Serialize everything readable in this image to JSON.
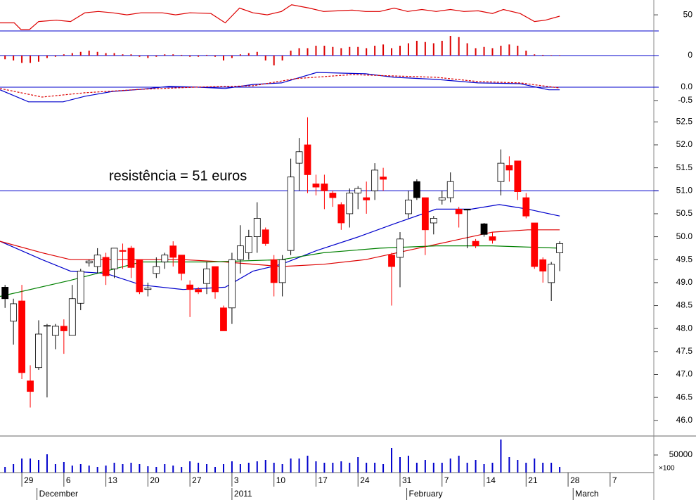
{
  "chart_data": [
    {
      "type": "line",
      "ylim": [
        32,
        65
      ],
      "yticks": [
        50
      ],
      "series": [
        {
          "color": "#dd0000",
          "x": [
            -0.6,
            1.1,
            1.9,
            2.9,
            4,
            6.1,
            7.8,
            9.5,
            11.1,
            12.8,
            14.5,
            16.2,
            18.7,
            20.3,
            22,
            24.5,
            26.2,
            27.9,
            29.5,
            31.2,
            32.9,
            34.1,
            36.2,
            37.9,
            39.6,
            41.3,
            42.9,
            44.6,
            46.3,
            47.9,
            49.6,
            51.3,
            53,
            54.6,
            56.3,
            58,
            59.3,
            61.3,
            63,
            64.3,
            66
          ],
          "values": [
            41,
            41,
            33.5,
            33.5,
            42.5,
            44,
            42.5,
            52.25,
            53.75,
            52.25,
            50,
            52.25,
            52.25,
            50,
            52.25,
            51.5,
            41,
            57.5,
            52.25,
            50,
            53.75,
            61.25,
            57.5,
            53.75,
            54.5,
            55.25,
            53.75,
            53.75,
            57.5,
            53.75,
            56,
            53.75,
            56,
            53.75,
            54.5,
            51.5,
            56,
            51.5,
            42.5,
            44,
            48.5
          ]
        }
      ]
    },
    {
      "type": "bar",
      "ylim": [
        -0.6,
        1.0
      ],
      "yticks": [
        0
      ],
      "color": "#dd0000",
      "values": [
        -0.15,
        -0.2,
        -0.3,
        -0.3,
        -0.25,
        -0.1,
        -0.05,
        0.05,
        0.1,
        0.15,
        0.2,
        0.15,
        0.1,
        0.1,
        0.05,
        0.05,
        -0.05,
        -0.1,
        -0.05,
        0.05,
        0.05,
        0.03,
        -0.05,
        -0.05,
        0.03,
        -0.05,
        -0.2,
        -0.1,
        0.05,
        0.1,
        0.15,
        -0.2,
        -0.4,
        -0.2,
        0.2,
        0.3,
        0.3,
        0.4,
        0.4,
        0.35,
        0.3,
        0.35,
        0.35,
        0.3,
        0.4,
        0.45,
        0.3,
        0.4,
        0.5,
        0.6,
        0.55,
        0.5,
        0.6,
        0.8,
        0.75,
        0.5,
        0.3,
        0.35,
        0.3,
        0.4,
        0.45,
        0.4,
        0.2,
        0.05,
        0.03,
        0.02,
        0.02
      ]
    },
    {
      "type": "line",
      "ylim": [
        -0.87,
        0.63
      ],
      "yticks": [
        {
          "value": 0,
          "label": "0.0"
        },
        {
          "value": -0.5,
          "label": "-0.5"
        }
      ],
      "zero_line": 0,
      "series": [
        {
          "color": "#0000cc",
          "x": [
            -0.6,
            2.8,
            6.9,
            9.5,
            12.8,
            16.2,
            19.5,
            22.8,
            26.2,
            29.5,
            32.9,
            37.1,
            42.9,
            46.3,
            51.3,
            56.3,
            61.3,
            64.7,
            66
          ],
          "values": [
            -0.1,
            -0.55,
            -0.55,
            -0.34,
            -0.16,
            -0.08,
            0.03,
            0,
            -0.05,
            0.1,
            0.16,
            0.55,
            0.5,
            0.37,
            0.29,
            0.16,
            0.13,
            -0.1,
            -0.1
          ]
        },
        {
          "color": "#dd0000",
          "dash": true,
          "x": [
            -0.6,
            4.4,
            9.5,
            16.2,
            22.8,
            29.5,
            34.6,
            41.3,
            46.3,
            51.3,
            56.3,
            61.3,
            66
          ],
          "values": [
            -0.05,
            -0.37,
            -0.21,
            -0.08,
            0,
            0.05,
            0.32,
            0.47,
            0.42,
            0.37,
            0.21,
            0.16,
            -0.03
          ]
        }
      ]
    },
    {
      "type": "candlestick",
      "ylim": [
        45.66,
        52.75
      ],
      "yticks": [
        {
          "value": 52.5,
          "label": "52.5"
        },
        {
          "value": 52,
          "label": "52.0"
        },
        {
          "value": 51.5,
          "label": "51.5"
        },
        {
          "value": 51,
          "label": "51.0"
        },
        {
          "value": 50.5,
          "label": "50.5"
        },
        {
          "value": 50,
          "label": "50.0"
        },
        {
          "value": 49.5,
          "label": "49.5"
        },
        {
          "value": 49,
          "label": "49.0"
        },
        {
          "value": 48.5,
          "label": "48.5"
        },
        {
          "value": 48,
          "label": "48.0"
        },
        {
          "value": 47.5,
          "label": "47.5"
        },
        {
          "value": 47,
          "label": "47.0"
        },
        {
          "value": 46.5,
          "label": "46.5"
        },
        {
          "value": 46,
          "label": "46.0"
        }
      ],
      "up_color": "#ffffff",
      "down_color": "#ff0000",
      "hold_color": "#000000",
      "reference_line": 51,
      "annotation": "resistência = 51 euros",
      "open": [
        48.9,
        48.16,
        48.6,
        46.86,
        47.15,
        48.05,
        47.85,
        48.05,
        47.85,
        48.55,
        49.43,
        49.35,
        49.55,
        49.3,
        49.7,
        49.75,
        49.5,
        48.85,
        49.2,
        49.45,
        49.8,
        49.6,
        48.95,
        48.85,
        48.98,
        49.35,
        48.45,
        48.45,
        49.5,
        49.65,
        50.0,
        50.15,
        49.5,
        49.0,
        49.7,
        51.6,
        52.0,
        51.15,
        51.15,
        50.95,
        50.7,
        50.5,
        50.95,
        50.85,
        51.0,
        51.3,
        49.6,
        49.55,
        50.5,
        51.2,
        50.85,
        50.3,
        50.8,
        50.85,
        50.6,
        50.6,
        49.9,
        50.28,
        50.0,
        51.2,
        51.55,
        51.65,
        50.85,
        50.3,
        49.5,
        49.0,
        49.65
      ],
      "high": [
        48.95,
        48.65,
        48.95,
        47.2,
        48.18,
        48.1,
        48.1,
        48.2,
        48.95,
        49.3,
        49.5,
        49.75,
        49.65,
        49.75,
        49.85,
        49.8,
        49.5,
        49.0,
        49.55,
        49.65,
        49.9,
        49.6,
        49.05,
        48.9,
        49.45,
        49.35,
        48.5,
        49.65,
        50.25,
        50.15,
        50.75,
        50.2,
        49.6,
        49.6,
        51.7,
        52.15,
        52.6,
        51.35,
        51.35,
        51.0,
        50.75,
        51.05,
        51.1,
        51.2,
        51.6,
        51.5,
        49.65,
        50.1,
        51.0,
        51.25,
        50.85,
        50.45,
        51.0,
        51.4,
        50.65,
        50.6,
        49.95,
        50.3,
        50.1,
        51.9,
        51.75,
        51.65,
        50.95,
        50.3,
        49.55,
        49.45,
        49.9
      ],
      "low": [
        48.45,
        47.65,
        46.9,
        46.28,
        47.1,
        46.5,
        47.55,
        47.45,
        47.85,
        48.4,
        49.35,
        49.2,
        48.95,
        49.1,
        49.3,
        49.1,
        48.75,
        48.7,
        49.1,
        49.3,
        49.35,
        49.05,
        48.25,
        48.75,
        48.75,
        48.65,
        47.95,
        48.1,
        49.2,
        49.5,
        49.65,
        49.8,
        48.7,
        48.7,
        49.6,
        51.0,
        50.95,
        50.9,
        50.6,
        50.65,
        50.15,
        50.2,
        50.6,
        50.5,
        50.8,
        51.0,
        48.5,
        48.9,
        50.4,
        50.8,
        49.6,
        50.05,
        50.7,
        50.75,
        50.2,
        49.75,
        49.75,
        50.0,
        49.85,
        50.9,
        51.2,
        50.8,
        50.4,
        49.3,
        49.0,
        48.6,
        49.25
      ],
      "close": [
        48.65,
        48.54,
        47.04,
        46.63,
        47.88,
        48.07,
        48.05,
        47.95,
        48.65,
        49.25,
        49.47,
        49.6,
        49.15,
        49.75,
        49.68,
        49.33,
        48.8,
        48.88,
        49.35,
        49.6,
        49.55,
        49.2,
        48.85,
        48.8,
        49.3,
        48.8,
        47.95,
        49.5,
        49.8,
        50.0,
        50.4,
        49.85,
        49.0,
        49.5,
        51.3,
        51.85,
        51.35,
        51.08,
        51.0,
        50.85,
        50.3,
        50.95,
        51.05,
        50.8,
        51.45,
        51.25,
        49.35,
        49.95,
        50.8,
        50.85,
        50.15,
        50.4,
        50.85,
        51.2,
        50.5,
        50.58,
        49.8,
        50.05,
        49.92,
        51.6,
        51.45,
        50.98,
        50.45,
        49.35,
        49.25,
        49.4,
        49.85
      ],
      "series": [
        {
          "color": "#0000cc",
          "x": [
            -0.6,
            4.4,
            7.8,
            12,
            16.2,
            21.2,
            26.2,
            29.5,
            32.9,
            37.1,
            42.1,
            46.3,
            51.3,
            55.5,
            58.8,
            62.2,
            66
          ],
          "values": [
            49.9,
            49.5,
            49.25,
            49.2,
            48.95,
            48.85,
            48.9,
            49.25,
            49.4,
            49.7,
            50.0,
            50.28,
            50.6,
            50.6,
            50.7,
            50.6,
            50.45
          ]
        },
        {
          "color": "#dd0000",
          "x": [
            -0.6,
            4.4,
            7.8,
            16.2,
            21.2,
            26.2,
            32.9,
            37.9,
            42.9,
            47.9,
            53,
            58,
            62.2,
            66
          ],
          "values": [
            49.9,
            49.65,
            49.5,
            49.5,
            49.5,
            49.45,
            49.35,
            49.4,
            49.5,
            49.7,
            49.9,
            50.1,
            50.15,
            50.15
          ]
        },
        {
          "color": "#008000",
          "x": [
            -0.6,
            7.8,
            16.2,
            24.5,
            32.9,
            37.9,
            44.6,
            51.3,
            58,
            66
          ],
          "values": [
            48.7,
            49.05,
            49.45,
            49.45,
            49.5,
            49.65,
            49.75,
            49.8,
            49.8,
            49.75
          ]
        }
      ]
    },
    {
      "type": "bar",
      "ylim": [
        0,
        104000
      ],
      "yticks": [
        50000
      ],
      "unit_label": "×100",
      "color": "#0000cc",
      "values": [
        16000,
        24000,
        40000,
        40000,
        36000,
        52000,
        24000,
        30000,
        20000,
        24000,
        20000,
        16000,
        20000,
        28000,
        24000,
        28000,
        24000,
        18000,
        16000,
        24000,
        20000,
        16000,
        32000,
        28000,
        24000,
        16000,
        24000,
        32000,
        24000,
        28000,
        32000,
        36000,
        28000,
        24000,
        40000,
        40000,
        48000,
        32000,
        28000,
        28000,
        32000,
        28000,
        44000,
        28000,
        28000,
        24000,
        70000,
        44000,
        48000,
        28000,
        36000,
        28000,
        28000,
        40000,
        48000,
        28000,
        36000,
        24000,
        28000,
        94000,
        44000,
        36000,
        28000,
        40000,
        28000,
        28000,
        16000
      ],
      "xlim": [
        -0.6,
        77.2
      ],
      "xticks": [
        {
          "value": 2,
          "label": "29"
        },
        {
          "value": 7,
          "label": "6"
        },
        {
          "value": 12,
          "label": "13"
        },
        {
          "value": 17,
          "label": "20"
        },
        {
          "value": 22,
          "label": "27"
        },
        {
          "value": 27,
          "label": "3"
        },
        {
          "value": 32,
          "label": "10"
        },
        {
          "value": 37,
          "label": "17"
        },
        {
          "value": 42,
          "label": "24"
        },
        {
          "value": 47,
          "label": "31"
        },
        {
          "value": 52,
          "label": "7"
        },
        {
          "value": 57,
          "label": "14"
        },
        {
          "value": 62,
          "label": "21"
        },
        {
          "value": 67,
          "label": "28"
        },
        {
          "value": 72,
          "label": "7"
        }
      ],
      "month_ticks": [
        {
          "value": 3.8,
          "label": "December"
        },
        {
          "value": 27,
          "label": "2011"
        },
        {
          "value": 47.8,
          "label": "February"
        },
        {
          "value": 67.6,
          "label": "March"
        }
      ]
    }
  ]
}
